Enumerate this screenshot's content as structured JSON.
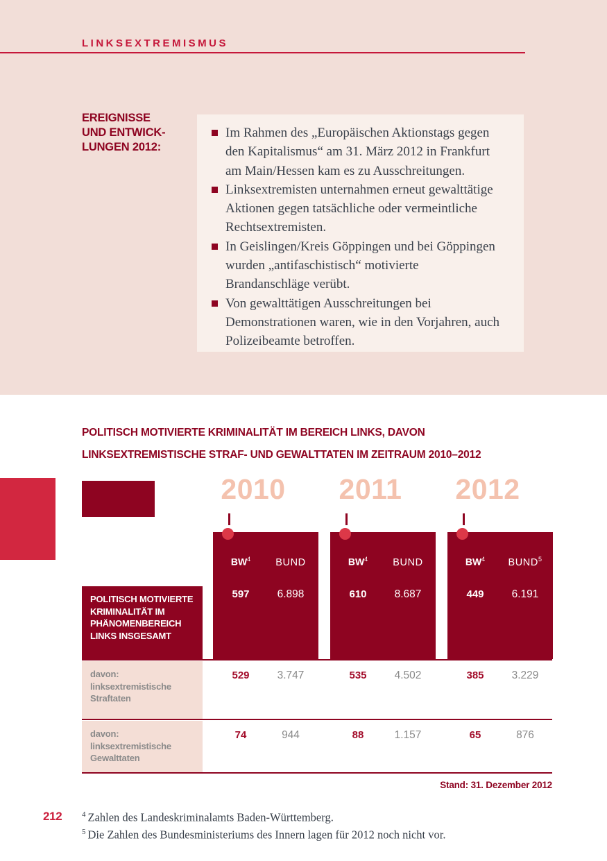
{
  "page": {
    "header": "LINKSEXTREMISMUS",
    "page_number": "212"
  },
  "events": {
    "label_lines": [
      "EREIGNISSE",
      "UND ENTWICK-",
      "LUNGEN 2012:"
    ],
    "bullets": [
      "Im Rahmen des „Europäischen Aktionstags gegen den Kapitalismus“ am 31. März 2012 in Frankfurt am Main/Hessen kam es zu Ausschreitungen.",
      "Linksextremisten unternahmen erneut gewalttätige Aktionen gegen tatsächliche oder vermeintliche Rechtsextremisten.",
      "In Geislingen/Kreis Göppingen und bei Göppingen wurden „antifaschistisch“ motivierte Brandanschläge verübt.",
      "Von gewalttätigen Ausschreitungen bei Demonstrationen waren, wie in den Vorjahren, auch Polizeibeamte betroffen."
    ]
  },
  "table": {
    "title_line1": "POLITISCH MOTIVIERTE KRIMINALITÄT IM BEREICH LINKS, DAVON",
    "title_line2": "LINKSEXTREMISTISCHE STRAF- UND GEWALTTATEN IM ZEITRAUM 2010–2012",
    "stand_note": "Stand: 31. Dezember 2012",
    "years": [
      {
        "label": "2010",
        "bw": "BW",
        "bw_sup": "4",
        "bund": "BUND",
        "bund_sup": ""
      },
      {
        "label": "2011",
        "bw": "BW",
        "bw_sup": "4",
        "bund": "BUND",
        "bund_sup": ""
      },
      {
        "label": "2012",
        "bw": "BW",
        "bw_sup": "4",
        "bund": "BUND",
        "bund_sup": "5"
      }
    ],
    "row1": {
      "label": "POLITISCH MOTIVIERTE KRIMINALITÄT IM PHÄNOMENBEREICH LINKS INSGESAMT",
      "values": [
        [
          "597",
          "6.898"
        ],
        [
          "610",
          "8.687"
        ],
        [
          "449",
          "6.191"
        ]
      ]
    },
    "row2": {
      "label": "davon: linksextremistische Straftaten",
      "values": [
        [
          "529",
          "3.747"
        ],
        [
          "535",
          "4.502"
        ],
        [
          "385",
          "3.229"
        ]
      ]
    },
    "row3": {
      "label": "davon: linksextremistische Gewalttaten",
      "values": [
        [
          "74",
          "944"
        ],
        [
          "88",
          "1.157"
        ],
        [
          "65",
          "876"
        ]
      ]
    }
  },
  "footnotes": [
    {
      "sup": "4",
      "text": "Zahlen des Landeskriminalamts Baden-Württemberg."
    },
    {
      "sup": "5",
      "text": "Die Zahlen des Bundesministeriums des Innern lagen für 2012 noch nicht vor."
    }
  ],
  "colors": {
    "crimson": "#C5173A",
    "maroon": "#8E0421",
    "salmon_year": "#F4C2AE",
    "page_pink": "#F2DED8",
    "box_pink": "#F9F0EB",
    "cell_pink": "#F4DED6",
    "gray_text": "#8A8A8A"
  }
}
